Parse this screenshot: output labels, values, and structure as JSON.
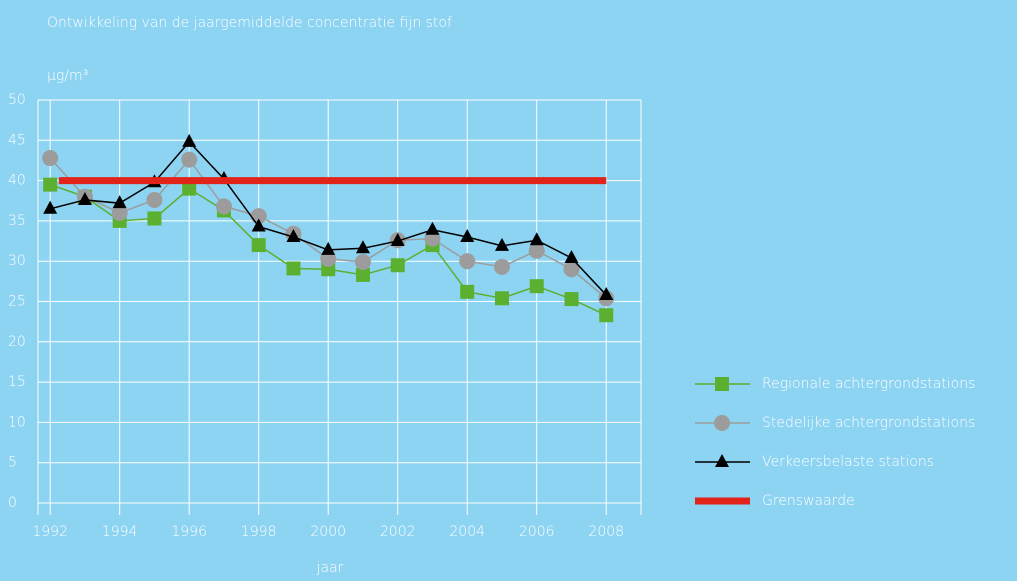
{
  "chart_data": {
    "type": "line",
    "title": "Ontwikkeling van de jaargemiddelde concentratie fijn stof",
    "y_label": "µg/m³",
    "x_label": "jaar",
    "x": [
      1992,
      1993,
      1994,
      1995,
      1996,
      1997,
      1998,
      1999,
      2000,
      2001,
      2002,
      2003,
      2004,
      2005,
      2006,
      2007,
      2008
    ],
    "series": [
      {
        "name": "Regionale achtergrondstations",
        "color": "#5cb030",
        "marker": "square",
        "values": [
          39.5,
          38,
          35,
          35.3,
          39,
          36.3,
          32,
          29.1,
          29,
          28.3,
          29.5,
          32,
          26.2,
          25.4,
          26.9,
          25.3,
          23.3
        ]
      },
      {
        "name": "Stedelijke achtergrondstations",
        "color": "#9c9c9c",
        "marker": "circle",
        "values": [
          42.8,
          38,
          36,
          37.6,
          42.6,
          36.8,
          35.6,
          33.4,
          30.3,
          29.9,
          32.6,
          32.8,
          30,
          29.3,
          31.3,
          29,
          25.4
        ]
      },
      {
        "name": "Verkeersbelaste  stations",
        "color": "#000000",
        "marker": "triangle",
        "values": [
          36.5,
          37.6,
          37.2,
          39.8,
          44.8,
          40.2,
          34.3,
          33,
          31.4,
          31.6,
          32.5,
          33.9,
          33,
          31.9,
          32.6,
          30.4,
          25.8
        ]
      },
      {
        "name": "Grenswaarde",
        "color": "#e2231a",
        "marker": "none",
        "x": [
          1992.25,
          2008
        ],
        "values": [
          40,
          40
        ]
      }
    ],
    "xlim": [
      1991.65,
      2009
    ],
    "ylim": [
      0,
      50
    ],
    "xticks": [
      1992,
      1994,
      1996,
      1998,
      2000,
      2002,
      2004,
      2006,
      2008
    ],
    "yticks": [
      0,
      5,
      10,
      15,
      20,
      25,
      30,
      35,
      40,
      45,
      50
    ],
    "grid": true,
    "legend": "right"
  }
}
